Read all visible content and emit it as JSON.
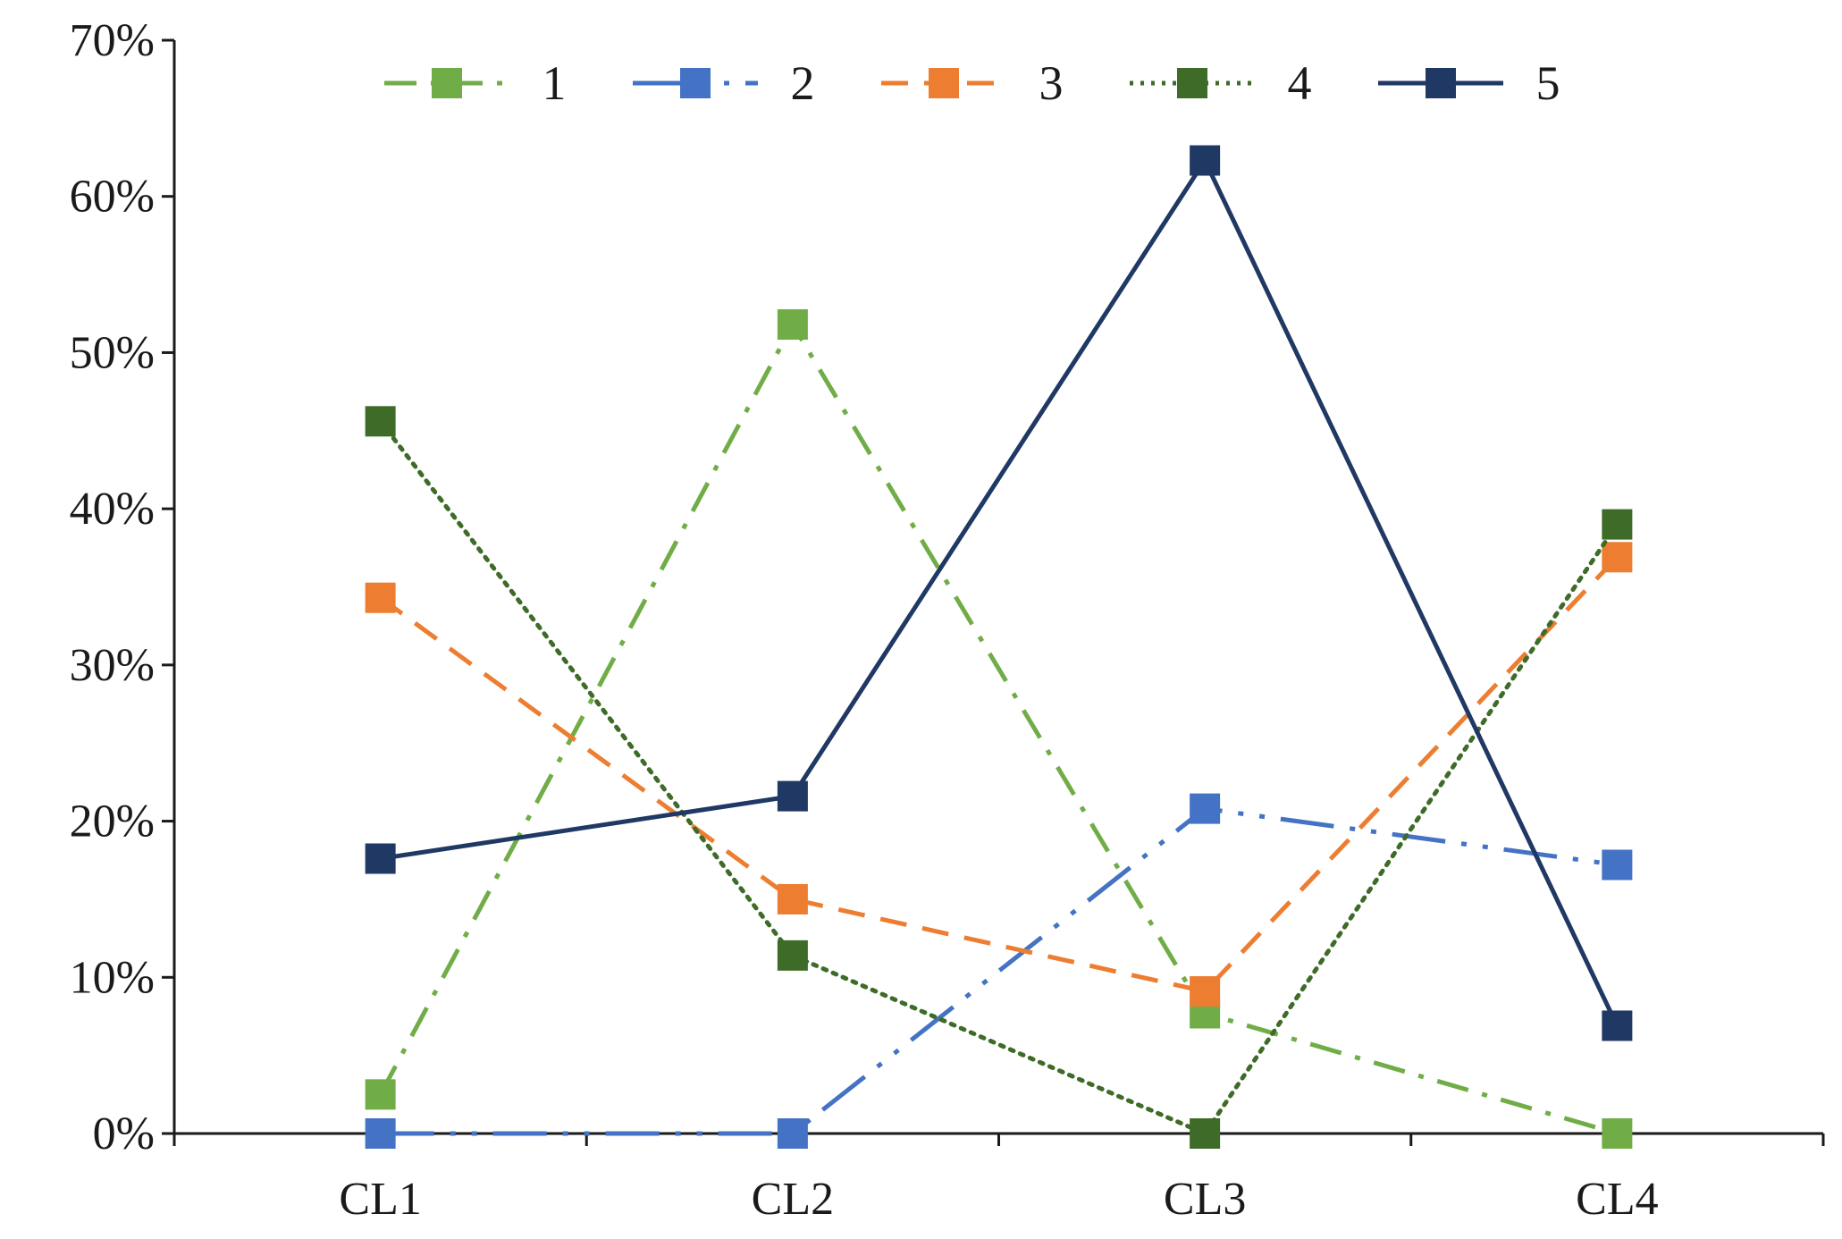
{
  "chart_data": {
    "type": "line",
    "title": "",
    "xlabel": "",
    "ylabel": "",
    "categories": [
      "CL1",
      "CL2",
      "CL3",
      "CL4"
    ],
    "y_ticks": [
      "0%",
      "10%",
      "20%",
      "30%",
      "40%",
      "50%",
      "60%",
      "70%"
    ],
    "ylim": [
      0,
      70
    ],
    "grid": false,
    "legend_position": "top",
    "series": [
      {
        "name": "1",
        "values": [
          2.5,
          51.8,
          7.7,
          0.0
        ],
        "color": "#70ad47",
        "line_style": "dash-dot"
      },
      {
        "name": "2",
        "values": [
          0.0,
          0.0,
          20.8,
          17.2
        ],
        "color": "#4472c4",
        "line_style": "long-dash-dot-dot"
      },
      {
        "name": "3",
        "values": [
          34.3,
          15.0,
          9.1,
          36.9
        ],
        "color": "#ed7d31",
        "line_style": "dashed"
      },
      {
        "name": "4",
        "values": [
          45.6,
          11.4,
          0.0,
          39.0
        ],
        "color": "#3e6b27",
        "line_style": "dotted"
      },
      {
        "name": "5",
        "values": [
          17.6,
          21.6,
          62.3,
          6.9
        ],
        "color": "#203864",
        "line_style": "solid"
      }
    ]
  }
}
